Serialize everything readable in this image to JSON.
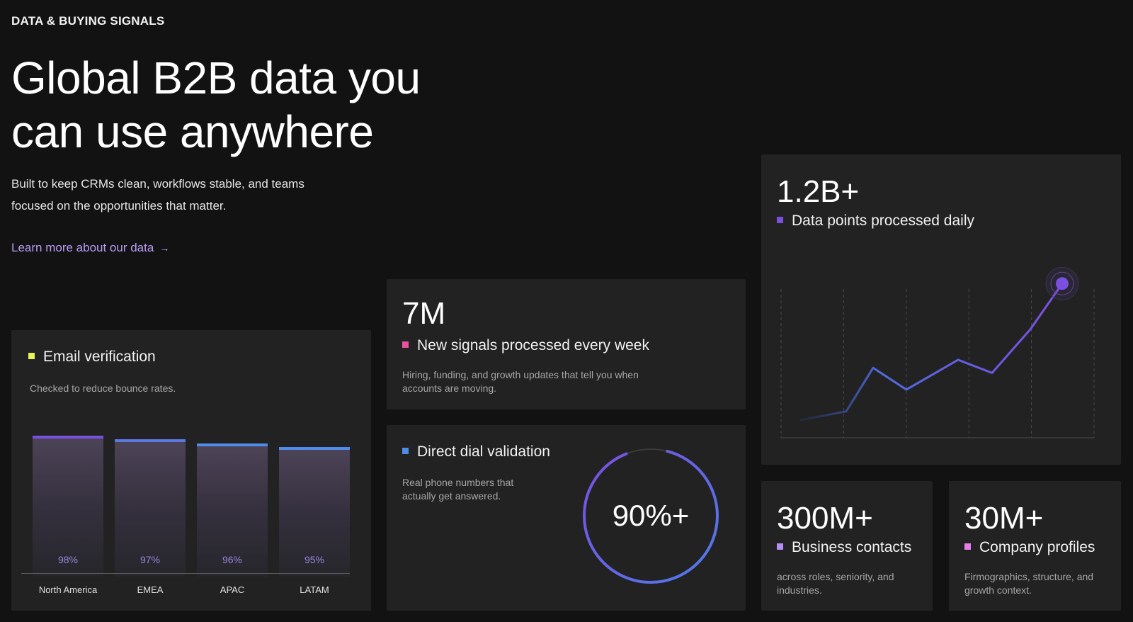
{
  "header": {
    "eyebrow": "DATA & BUYING SIGNALS",
    "title": "Global B2B data you can use anywhere",
    "subtitle": "Built to keep CRMs clean, workflows stable, and teams focused on the opportunities that matter.",
    "link_label": "Learn more about our data",
    "link_arrow": "→"
  },
  "colors": {
    "accent_purple": "#7b4fe0",
    "accent_blue": "#4f7be8",
    "yellow": "#e8f05a",
    "pink": "#ec4f9c",
    "violet": "#b58ef5",
    "magenta": "#e57ee8"
  },
  "email_card": {
    "label": "Email verification",
    "description": "Checked to reduce bounce rates.",
    "chart_data": {
      "type": "bar",
      "categories": [
        "North America",
        "EMEA",
        "APAC",
        "LATAM"
      ],
      "values": [
        98,
        97,
        96,
        95
      ],
      "value_labels": [
        "98%",
        "97%",
        "96%",
        "95%"
      ]
    }
  },
  "signals_card": {
    "value": "7M",
    "label": "New signals processed every week",
    "description": "Hiring, funding, and growth updates that tell you when accounts are moving."
  },
  "dial_card": {
    "label": "Direct dial validation",
    "description": "Real phone numbers that actually get answered.",
    "value": "90%+",
    "progress_fraction": 0.9
  },
  "daily_card": {
    "value": "1.2B+",
    "label": "Data points processed daily",
    "chart_data": {
      "type": "line",
      "x": [
        0,
        1,
        2,
        3,
        4,
        5,
        6,
        7
      ],
      "values": [
        0,
        1.2,
        7.2,
        4.2,
        8.3,
        6.5,
        12.5,
        18.8
      ],
      "grid": true
    }
  },
  "contacts_card": {
    "value": "300M+",
    "label": "Business contacts",
    "description": "across roles, seniority, and industries."
  },
  "companies_card": {
    "value": "30M+",
    "label": "Company profiles",
    "description": "Firmographics, structure, and growth context."
  }
}
